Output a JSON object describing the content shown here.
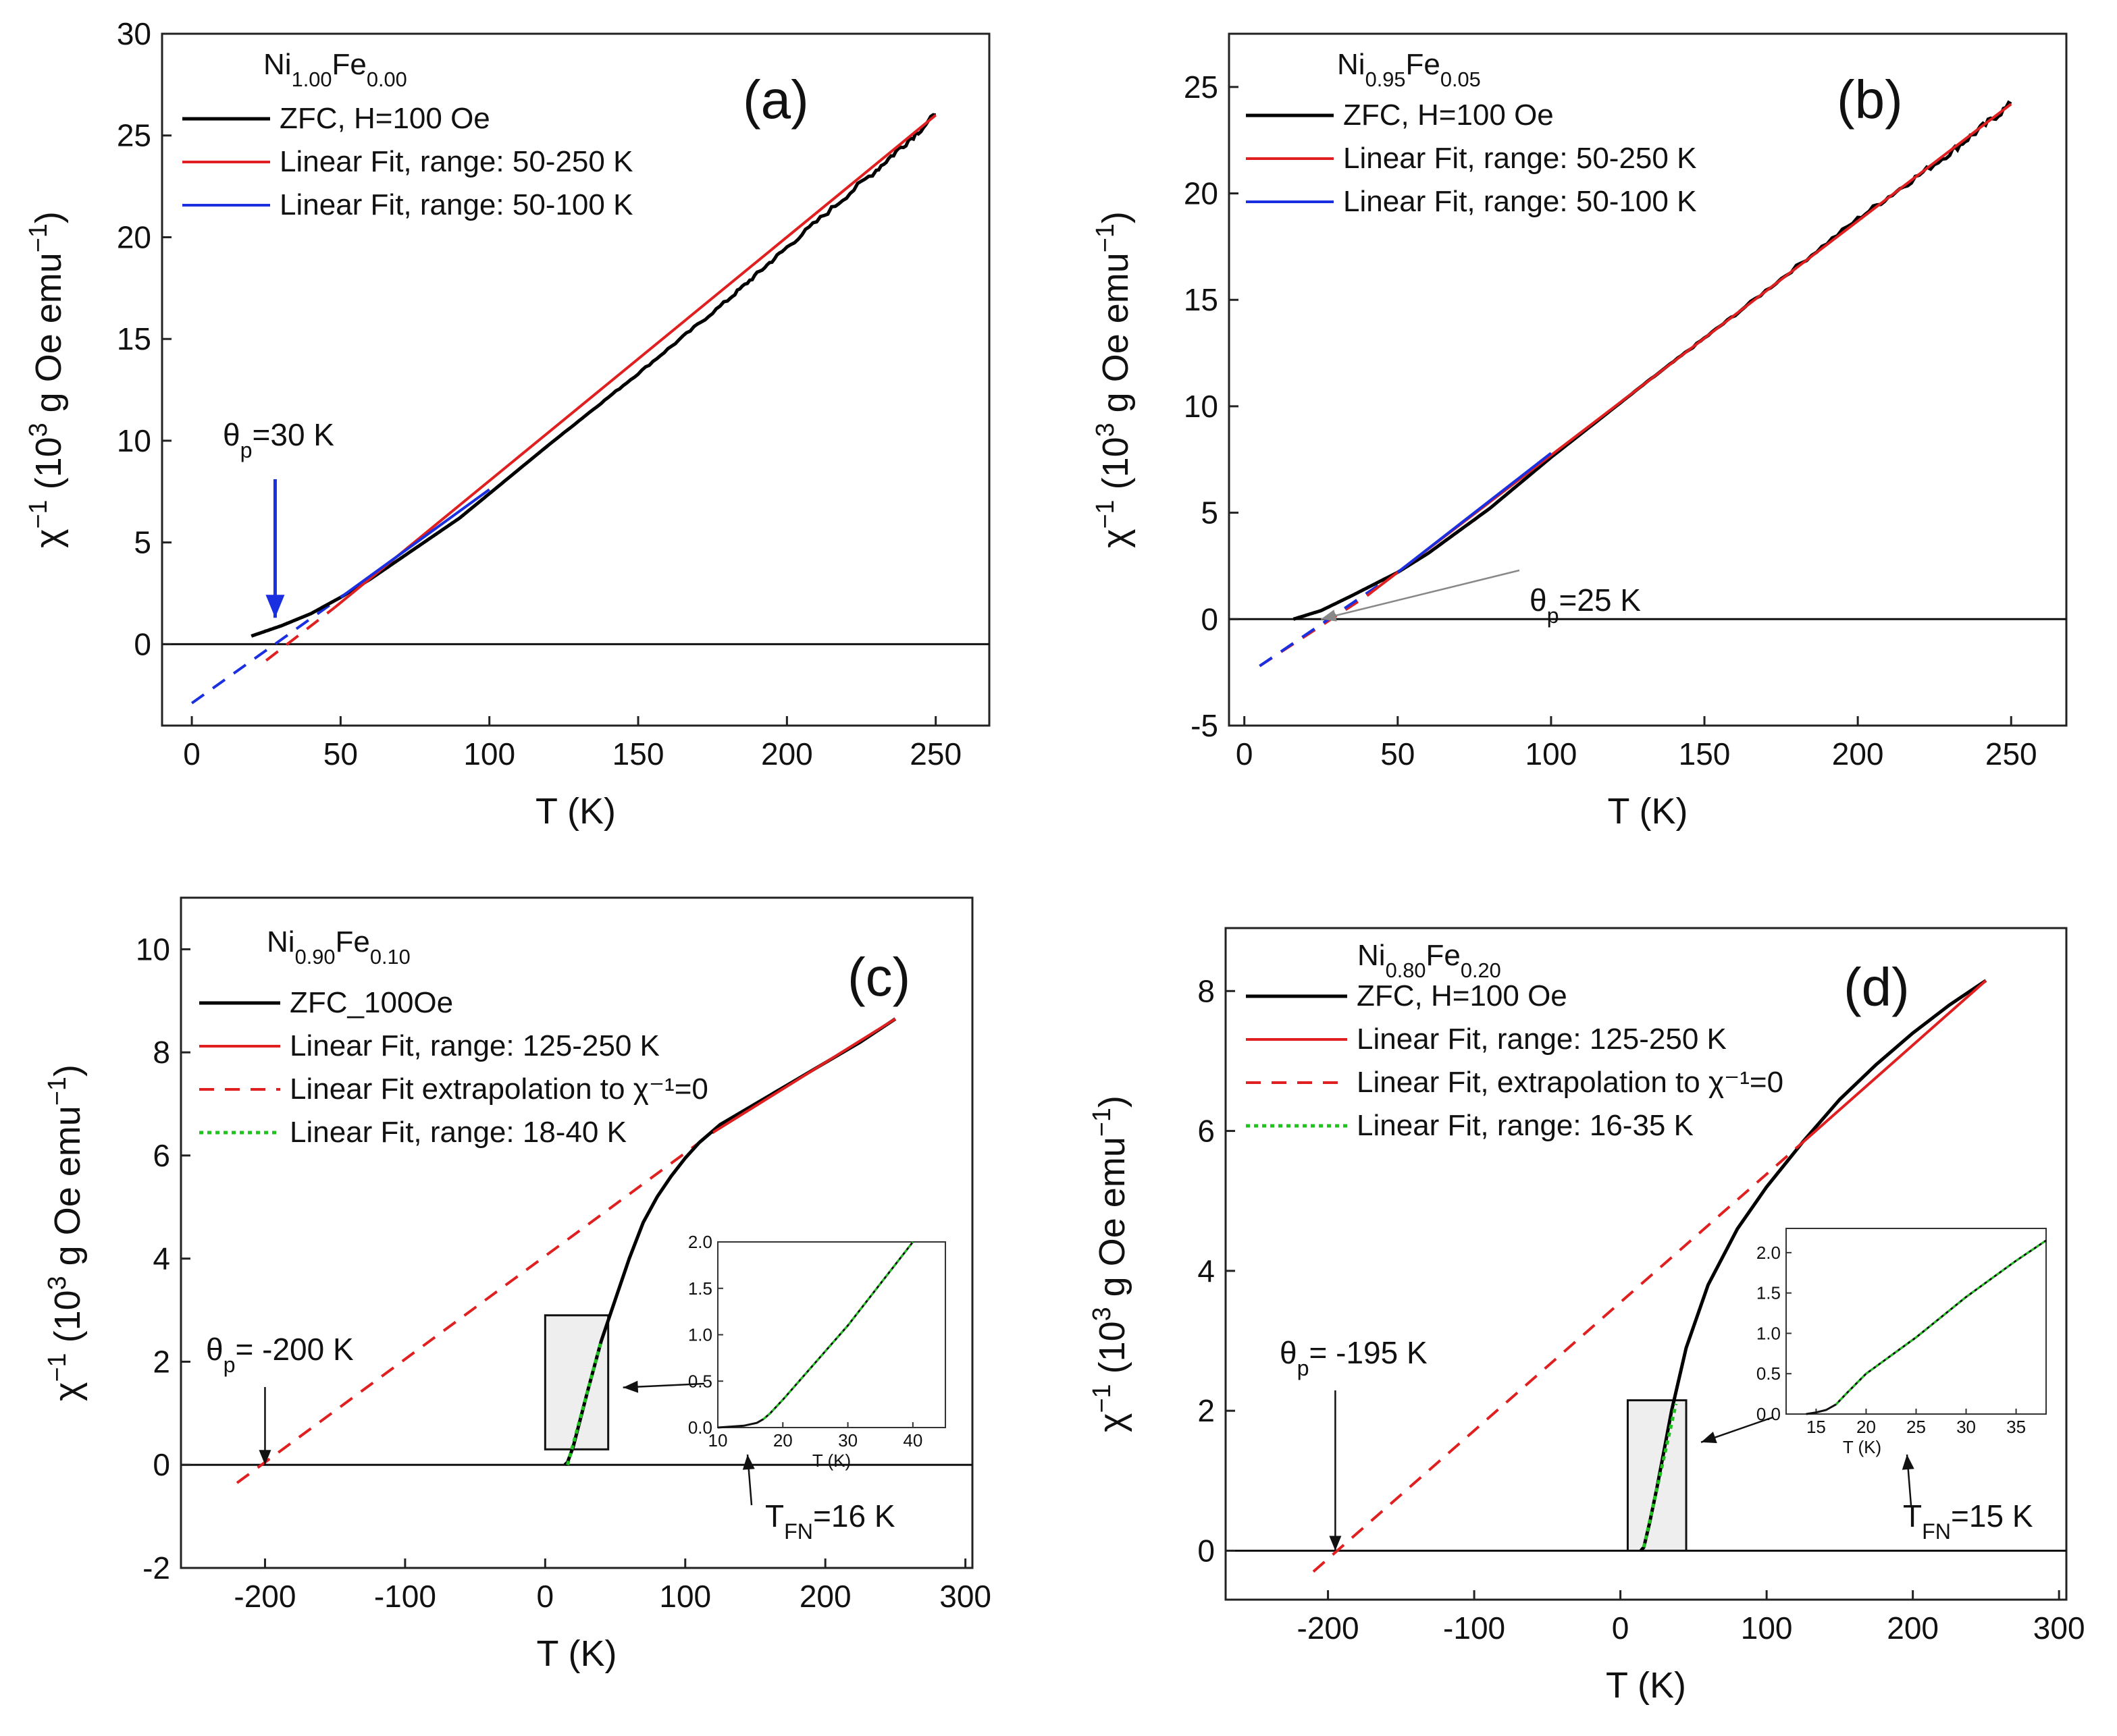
{
  "colors": {
    "zfc": "#000000",
    "fit_red": "#e02020",
    "fit_blue": "#1a2fe0",
    "fit_green": "#1fc21f",
    "arrow_blue": "#1a2fe0",
    "box_fill": "#eeeeee"
  },
  "chart_data": [
    {
      "panel": "a",
      "type": "line",
      "title": "Ni1.00Fe0.00",
      "compound": {
        "el1": "Ni",
        "x1": "1.00",
        "el2": "Fe",
        "x2": "0.00"
      },
      "letter": "(a)",
      "xlabel": "T (K)",
      "ylabel": "χ⁻¹ (10³ g Oe emu⁻¹)",
      "xlim": [
        -10,
        268
      ],
      "ylim": [
        -4,
        30
      ],
      "xticks": [
        0,
        50,
        100,
        150,
        200,
        250
      ],
      "yticks": [
        0,
        5,
        10,
        15,
        20,
        25,
        30
      ],
      "legend": [
        "ZFC, H=100 Oe",
        "Linear Fit, range: 50-250 K",
        "Linear Fit, range: 50-100 K"
      ],
      "series": [
        {
          "name": "ZFC, H=100 Oe",
          "style": "zfc",
          "noisy": true,
          "x": [
            20,
            30,
            40,
            50,
            60,
            70,
            80,
            90,
            100,
            120,
            150,
            180,
            200,
            230,
            250
          ],
          "y": [
            0.4,
            0.9,
            1.5,
            2.3,
            3.2,
            4.2,
            5.2,
            6.2,
            7.4,
            9.8,
            13.3,
            16.9,
            19.5,
            23.3,
            26.0
          ]
        },
        {
          "name": "Linear Fit, range: 50-250 K",
          "style": "red",
          "x": [
            48,
            250
          ],
          "y": [
            1.8,
            26.0
          ]
        },
        {
          "name": "Linear Fit, range: 50-100 K",
          "style": "blue",
          "x": [
            50,
            100
          ],
          "y": [
            2.3,
            7.6
          ]
        }
      ],
      "extrapolations": [
        {
          "style": "red-dash",
          "x": [
            25,
            48
          ],
          "y": [
            -0.8,
            1.8
          ]
        },
        {
          "style": "blue-dash",
          "x": [
            0,
            50
          ],
          "y": [
            -2.9,
            2.3
          ]
        }
      ],
      "annotations": [
        {
          "kind": "theta",
          "prefix": "θ",
          "sub": "p",
          "suffix": "=30 K",
          "point": [
            28,
            1.3
          ],
          "arrow": "blue"
        }
      ]
    },
    {
      "panel": "b",
      "type": "line",
      "title": "Ni0.95Fe0.05",
      "compound": {
        "el1": "Ni",
        "x1": "0.95",
        "el2": "Fe",
        "x2": "0.05"
      },
      "letter": "(b)",
      "xlabel": "T (K)",
      "ylabel": "χ⁻¹ (10³ g Oe emu⁻¹)",
      "xlim": [
        -5,
        268
      ],
      "ylim": [
        -5,
        27.5
      ],
      "xticks": [
        0,
        50,
        100,
        150,
        200,
        250
      ],
      "yticks": [
        -5,
        0,
        5,
        10,
        15,
        20,
        25
      ],
      "legend": [
        "ZFC, H=100 Oe",
        "Linear Fit, range: 50-250 K",
        "Linear Fit, range: 50-100 K"
      ],
      "series": [
        {
          "name": "ZFC, H=100 Oe",
          "style": "zfc",
          "noisy": true,
          "x": [
            16,
            25,
            35,
            50,
            60,
            80,
            100,
            130,
            160,
            200,
            230,
            250
          ],
          "y": [
            0.0,
            0.4,
            1.1,
            2.2,
            3.1,
            5.2,
            7.6,
            11.0,
            14.3,
            18.8,
            21.9,
            24.2
          ]
        },
        {
          "name": "Linear Fit, range: 50-250 K",
          "style": "red",
          "x": [
            40,
            250
          ],
          "y": [
            1.1,
            24.2
          ]
        },
        {
          "name": "Linear Fit, range: 50-100 K",
          "style": "blue",
          "x": [
            50,
            100
          ],
          "y": [
            2.2,
            7.8
          ]
        }
      ],
      "extrapolations": [
        {
          "style": "red-dash",
          "x": [
            5,
            40
          ],
          "y": [
            -2.2,
            1.1
          ]
        },
        {
          "style": "blue-dash",
          "x": [
            5,
            50
          ],
          "y": [
            -2.2,
            2.2
          ]
        }
      ],
      "annotations": [
        {
          "kind": "theta",
          "prefix": "θ",
          "sub": "p",
          "suffix": "=25 K",
          "point": [
            25,
            0
          ],
          "arrow": "gray"
        }
      ]
    },
    {
      "panel": "c",
      "type": "line",
      "title": "Ni0.90Fe0.10",
      "compound": {
        "el1": "Ni",
        "x1": "0.90",
        "el2": "Fe",
        "x2": "0.10"
      },
      "letter": "(c)",
      "xlabel": "T (K)",
      "ylabel": "χ⁻¹ (10³ g Oe emu⁻¹)",
      "xlim": [
        -260,
        305
      ],
      "ylim": [
        -2,
        11
      ],
      "xticks": [
        -200,
        -100,
        0,
        100,
        200,
        300
      ],
      "yticks": [
        -2,
        0,
        2,
        4,
        6,
        8,
        10
      ],
      "legend": [
        "ZFC_100Oe",
        "Linear Fit, range: 125-250 K",
        "Linear Fit extrapolation to χ⁻¹=0",
        "Linear Fit, range: 18-40 K"
      ],
      "series": [
        {
          "name": "ZFC_100Oe",
          "style": "zfc",
          "noisy": false,
          "x": [
            14,
            16,
            20,
            30,
            40,
            50,
            60,
            70,
            80,
            90,
            100,
            110,
            125,
            150,
            175,
            200,
            225,
            250
          ],
          "y": [
            0.0,
            0.05,
            0.35,
            1.4,
            2.4,
            3.2,
            4.0,
            4.7,
            5.2,
            5.6,
            5.95,
            6.25,
            6.6,
            7.0,
            7.4,
            7.8,
            8.2,
            8.65
          ]
        },
        {
          "name": "Linear Fit, range: 125-250 K",
          "style": "red",
          "x": [
            120,
            250
          ],
          "y": [
            6.45,
            8.65
          ]
        },
        {
          "name": "Linear Fit, range: 18-40 K",
          "style": "green",
          "x": [
            16,
            40
          ],
          "y": [
            0.0,
            2.4
          ]
        }
      ],
      "extrapolations": [
        {
          "style": "red-dash",
          "x": [
            -220,
            120
          ],
          "y": [
            -0.35,
            6.45
          ]
        }
      ],
      "zoom_box": {
        "x": [
          0,
          45
        ],
        "y": [
          0.3,
          2.9
        ]
      },
      "inset": {
        "xlim": [
          10,
          45
        ],
        "ylim": [
          0,
          2.0
        ],
        "xticks": [
          10,
          20,
          30,
          40
        ],
        "yticks": [
          0.0,
          0.5,
          1.0,
          1.5,
          2.0
        ],
        "xlabel": "T (K)",
        "x": [
          10,
          14,
          16,
          17,
          18,
          20,
          25,
          30,
          35,
          40
        ],
        "y": [
          0.0,
          0.02,
          0.05,
          0.09,
          0.15,
          0.3,
          0.7,
          1.1,
          1.55,
          2.0
        ]
      },
      "annotations": [
        {
          "kind": "theta",
          "prefix": "θ",
          "sub": "p",
          "suffix": "= -200 K",
          "point": [
            -200,
            0
          ],
          "arrow": "black"
        },
        {
          "kind": "tfn",
          "prefix": "T",
          "sub": "FN",
          "suffix": "=16 K"
        }
      ]
    },
    {
      "panel": "d",
      "type": "line",
      "title": "Ni0.80Fe0.20",
      "compound": {
        "el1": "Ni",
        "x1": "0.80",
        "el2": "Fe",
        "x2": "0.20"
      },
      "letter": "(d)",
      "xlabel": "T (K)",
      "ylabel": "χ⁻¹ (10³ g Oe emu⁻¹)",
      "xlim": [
        -270,
        305
      ],
      "ylim": [
        -0.7,
        8.9
      ],
      "xticks": [
        -200,
        -100,
        0,
        100,
        200,
        300
      ],
      "yticks": [
        0,
        2,
        4,
        6,
        8
      ],
      "legend": [
        "ZFC, H=100 Oe",
        "Linear Fit, range: 125-250 K",
        "Linear Fit, extrapolation to χ⁻¹=0",
        "Linear Fit, range: 16-35 K"
      ],
      "series": [
        {
          "name": "ZFC, H=100 Oe",
          "style": "zfc",
          "noisy": false,
          "x": [
            14,
            16,
            20,
            25,
            30,
            35,
            45,
            60,
            80,
            100,
            125,
            150,
            175,
            200,
            225,
            250
          ],
          "y": [
            0.0,
            0.05,
            0.4,
            0.9,
            1.45,
            2.0,
            2.9,
            3.8,
            4.6,
            5.2,
            5.85,
            6.45,
            6.95,
            7.4,
            7.8,
            8.15
          ]
        },
        {
          "name": "Linear Fit, range: 125-250 K",
          "style": "red",
          "x": [
            120,
            250
          ],
          "y": [
            5.75,
            8.15
          ]
        },
        {
          "name": "Linear Fit, range: 16-35 K",
          "style": "green",
          "x": [
            16,
            38
          ],
          "y": [
            0.05,
            2.1
          ]
        }
      ],
      "extrapolations": [
        {
          "style": "red-dash",
          "x": [
            -210,
            120
          ],
          "y": [
            -0.3,
            5.75
          ]
        }
      ],
      "zoom_box": {
        "x": [
          5,
          45
        ],
        "y": [
          0,
          2.15
        ]
      },
      "inset": {
        "xlim": [
          12,
          38
        ],
        "ylim": [
          0,
          2.3
        ],
        "xticks": [
          15,
          20,
          25,
          30,
          35
        ],
        "yticks": [
          0.0,
          0.5,
          1.0,
          1.5,
          2.0
        ],
        "xlabel": "T (K)",
        "x": [
          14,
          15,
          16,
          17,
          18,
          20,
          25,
          30,
          35,
          38
        ],
        "y": [
          0.0,
          0.02,
          0.05,
          0.12,
          0.25,
          0.5,
          0.95,
          1.45,
          1.9,
          2.15
        ]
      },
      "annotations": [
        {
          "kind": "theta",
          "prefix": "θ",
          "sub": "p",
          "suffix": "= -195 K",
          "point": [
            -195,
            0
          ],
          "arrow": "black"
        },
        {
          "kind": "tfn",
          "prefix": "T",
          "sub": "FN",
          "suffix": "=15 K"
        }
      ]
    }
  ]
}
